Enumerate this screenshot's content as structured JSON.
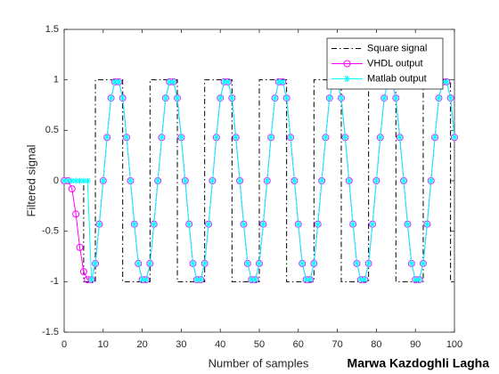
{
  "chart_data": {
    "type": "line",
    "xlabel": "Number of samples",
    "ylabel": "Filtered signal",
    "annotation": "Marwa Kazdoghli Lagha",
    "xlim": [
      0,
      100
    ],
    "xticks": [
      0,
      10,
      20,
      30,
      40,
      50,
      60,
      70,
      80,
      90,
      100
    ],
    "ylim": [
      -1.5,
      1.5
    ],
    "yticks": [
      -1.5,
      -1,
      -0.5,
      0,
      0.5,
      1,
      1.5
    ],
    "grid": false,
    "legend": "upper right",
    "series": [
      {
        "name": "Square signal",
        "color": "#000000",
        "style": "dashdot",
        "marker": "none",
        "x": [
          0,
          5,
          5,
          8,
          8,
          15,
          15,
          22,
          22,
          29,
          29,
          36,
          36,
          43,
          43,
          50,
          50,
          57,
          57,
          64,
          64,
          71,
          71,
          78,
          78,
          85,
          85,
          92,
          92,
          99,
          99,
          100
        ],
        "values": [
          0,
          0,
          -1,
          -1,
          1,
          1,
          -1,
          -1,
          1,
          1,
          -1,
          -1,
          1,
          1,
          -1,
          -1,
          1,
          1,
          -1,
          -1,
          1,
          1,
          -1,
          -1,
          1,
          1,
          -1,
          -1,
          1,
          1,
          -1,
          -1
        ]
      },
      {
        "name": "VHDL output",
        "color": "#ff00ff",
        "style": "solid",
        "marker": "circle",
        "x": [
          0,
          1,
          2,
          3,
          4,
          5,
          6,
          7,
          8,
          9,
          10,
          11,
          12,
          13,
          14,
          15,
          16,
          17,
          18,
          19,
          20,
          21,
          22,
          23,
          24,
          25,
          26,
          27,
          28,
          29,
          30,
          31,
          32,
          33,
          34,
          35,
          36,
          37,
          38,
          39,
          40,
          41,
          42,
          43,
          44,
          45,
          46,
          47,
          48,
          49,
          50,
          51,
          52,
          53,
          54,
          55,
          56,
          57,
          58,
          59,
          60,
          61,
          62,
          63,
          64,
          65,
          66,
          67,
          68,
          69,
          70,
          71,
          72,
          73,
          74,
          75,
          76,
          77,
          78,
          79,
          80,
          81,
          82,
          83,
          84,
          85,
          86,
          87,
          88,
          89,
          90,
          91,
          92,
          93,
          94,
          95,
          96,
          97,
          98,
          99,
          100
        ],
        "values": [
          0,
          0,
          -0.08,
          -0.33,
          -0.66,
          -0.9,
          -0.98,
          -0.98,
          -0.82,
          -0.43,
          0,
          0.43,
          0.82,
          0.98,
          0.98,
          0.82,
          0.43,
          0,
          -0.43,
          -0.82,
          -0.98,
          -0.98,
          -0.82,
          -0.43,
          0,
          0.43,
          0.82,
          0.98,
          0.98,
          0.82,
          0.43,
          0,
          -0.43,
          -0.82,
          -0.98,
          -0.98,
          -0.82,
          -0.43,
          0,
          0.43,
          0.82,
          0.98,
          0.98,
          0.82,
          0.43,
          0,
          -0.43,
          -0.82,
          -0.98,
          -0.98,
          -0.82,
          -0.43,
          0,
          0.43,
          0.82,
          0.98,
          0.98,
          0.82,
          0.43,
          0,
          -0.43,
          -0.82,
          -0.98,
          -0.98,
          -0.82,
          -0.43,
          0,
          0.43,
          0.82,
          0.98,
          0.98,
          0.82,
          0.43,
          0,
          -0.43,
          -0.82,
          -0.98,
          -0.98,
          -0.82,
          -0.43,
          0,
          0.43,
          0.82,
          0.98,
          0.98,
          0.82,
          0.43,
          0,
          -0.43,
          -0.82,
          -0.98,
          -0.98,
          -0.82,
          -0.43,
          0,
          0.43,
          0.82,
          0.98,
          0.98,
          0.82,
          0.43
        ]
      },
      {
        "name": "Matlab output",
        "color": "#00ffff",
        "style": "solid",
        "marker": "star",
        "x": [
          0,
          1,
          2,
          3,
          4,
          5,
          6,
          7,
          8,
          9,
          10,
          11,
          12,
          13,
          14,
          15,
          16,
          17,
          18,
          19,
          20,
          21,
          22,
          23,
          24,
          25,
          26,
          27,
          28,
          29,
          30,
          31,
          32,
          33,
          34,
          35,
          36,
          37,
          38,
          39,
          40,
          41,
          42,
          43,
          44,
          45,
          46,
          47,
          48,
          49,
          50,
          51,
          52,
          53,
          54,
          55,
          56,
          57,
          58,
          59,
          60,
          61,
          62,
          63,
          64,
          65,
          66,
          67,
          68,
          69,
          70,
          71,
          72,
          73,
          74,
          75,
          76,
          77,
          78,
          79,
          80,
          81,
          82,
          83,
          84,
          85,
          86,
          87,
          88,
          89,
          90,
          91,
          92,
          93,
          94,
          95,
          96,
          97,
          98,
          99,
          100
        ],
        "values": [
          0,
          0,
          0,
          0,
          0,
          0,
          0,
          -0.98,
          -0.82,
          -0.43,
          0,
          0.43,
          0.82,
          0.98,
          0.98,
          0.82,
          0.43,
          0,
          -0.43,
          -0.82,
          -0.98,
          -0.98,
          -0.82,
          -0.43,
          0,
          0.43,
          0.82,
          0.98,
          0.98,
          0.82,
          0.43,
          0,
          -0.43,
          -0.82,
          -0.98,
          -0.98,
          -0.82,
          -0.43,
          0,
          0.43,
          0.82,
          0.98,
          0.98,
          0.82,
          0.43,
          0,
          -0.43,
          -0.82,
          -0.98,
          -0.98,
          -0.82,
          -0.43,
          0,
          0.43,
          0.82,
          0.98,
          0.98,
          0.82,
          0.43,
          0,
          -0.43,
          -0.82,
          -0.98,
          -0.98,
          -0.82,
          -0.43,
          0,
          0.43,
          0.82,
          0.98,
          0.98,
          0.82,
          0.43,
          0,
          -0.43,
          -0.82,
          -0.98,
          -0.98,
          -0.82,
          -0.43,
          0,
          0.43,
          0.82,
          0.98,
          0.98,
          0.82,
          0.43,
          0,
          -0.43,
          -0.82,
          -0.98,
          -0.98,
          -0.82,
          -0.43,
          0,
          0.43,
          0.82,
          0.98,
          0.98,
          0.82,
          0.43
        ]
      }
    ]
  }
}
